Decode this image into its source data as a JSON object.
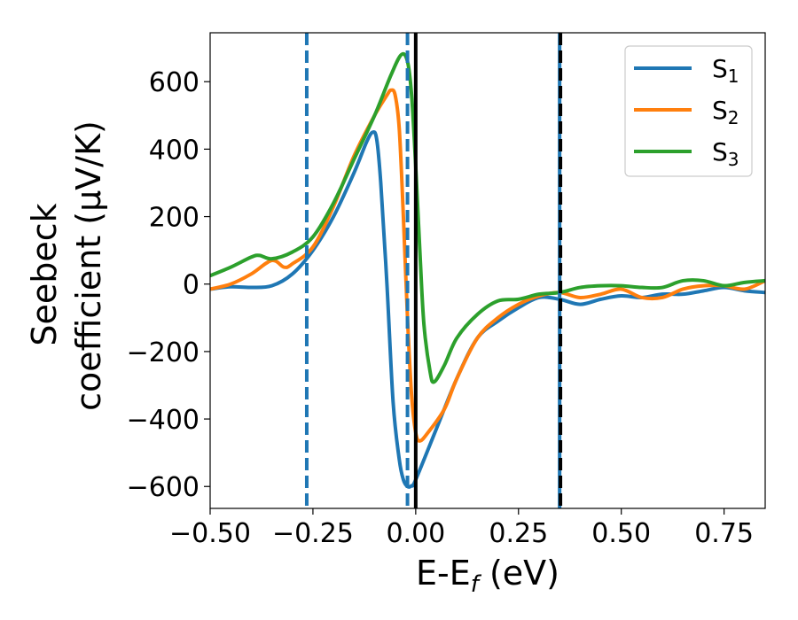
{
  "chart_data": {
    "type": "line",
    "xlabel": {
      "base": "E-E",
      "sub": "f",
      "suffix": " (eV)"
    },
    "ylabel": {
      "line1": "Seebeck",
      "line2": "coefficient  (μV/K)"
    },
    "xlim": [
      -0.5,
      0.85
    ],
    "ylim": [
      -665,
      745
    ],
    "xticks": [
      -0.5,
      -0.25,
      0.0,
      0.25,
      0.5,
      0.75
    ],
    "xtick_labels": [
      "−0.50",
      "−0.25",
      "0.00",
      "0.25",
      "0.50",
      "0.75"
    ],
    "yticks": [
      -600,
      -400,
      -200,
      0,
      200,
      400,
      600
    ],
    "ytick_labels": [
      "−600",
      "−400",
      "−200",
      "0",
      "200",
      "400",
      "600"
    ],
    "grid": false,
    "legend": {
      "position": "top-right",
      "entries": [
        {
          "base": "S",
          "sub": "1",
          "color": "#1f77b4"
        },
        {
          "base": "S",
          "sub": "2",
          "color": "#ff7f0e"
        },
        {
          "base": "S",
          "sub": "3",
          "color": "#2ca02c"
        }
      ]
    },
    "series": [
      {
        "color": "#1f77b4",
        "points": [
          [
            -0.5,
            -15
          ],
          [
            -0.45,
            -8
          ],
          [
            -0.4,
            -10
          ],
          [
            -0.35,
            -5
          ],
          [
            -0.3,
            30
          ],
          [
            -0.25,
            100
          ],
          [
            -0.2,
            200
          ],
          [
            -0.15,
            330
          ],
          [
            -0.12,
            420
          ],
          [
            -0.105,
            450
          ],
          [
            -0.095,
            430
          ],
          [
            -0.085,
            300
          ],
          [
            -0.07,
            0
          ],
          [
            -0.055,
            -350
          ],
          [
            -0.04,
            -520
          ],
          [
            -0.03,
            -580
          ],
          [
            -0.02,
            -600
          ],
          [
            -0.01,
            -598
          ],
          [
            0.0,
            -580
          ],
          [
            0.05,
            -430
          ],
          [
            0.1,
            -280
          ],
          [
            0.15,
            -160
          ],
          [
            0.2,
            -110
          ],
          [
            0.25,
            -70
          ],
          [
            0.3,
            -40
          ],
          [
            0.35,
            -45
          ],
          [
            0.4,
            -60
          ],
          [
            0.45,
            -45
          ],
          [
            0.5,
            -35
          ],
          [
            0.55,
            -40
          ],
          [
            0.6,
            -30
          ],
          [
            0.65,
            -30
          ],
          [
            0.7,
            -20
          ],
          [
            0.75,
            -10
          ],
          [
            0.8,
            -20
          ],
          [
            0.85,
            -25
          ]
        ]
      },
      {
        "color": "#ff7f0e",
        "points": [
          [
            -0.5,
            -15
          ],
          [
            -0.45,
            0
          ],
          [
            -0.4,
            30
          ],
          [
            -0.35,
            70
          ],
          [
            -0.32,
            50
          ],
          [
            -0.3,
            60
          ],
          [
            -0.25,
            110
          ],
          [
            -0.2,
            230
          ],
          [
            -0.15,
            380
          ],
          [
            -0.1,
            500
          ],
          [
            -0.07,
            560
          ],
          [
            -0.06,
            575
          ],
          [
            -0.05,
            560
          ],
          [
            -0.04,
            460
          ],
          [
            -0.03,
            200
          ],
          [
            -0.02,
            -100
          ],
          [
            -0.01,
            -330
          ],
          [
            0.0,
            -440
          ],
          [
            0.01,
            -465
          ],
          [
            0.03,
            -440
          ],
          [
            0.07,
            -370
          ],
          [
            0.1,
            -280
          ],
          [
            0.15,
            -160
          ],
          [
            0.2,
            -100
          ],
          [
            0.25,
            -60
          ],
          [
            0.3,
            -35
          ],
          [
            0.35,
            -25
          ],
          [
            0.4,
            -40
          ],
          [
            0.45,
            -30
          ],
          [
            0.5,
            -15
          ],
          [
            0.55,
            -40
          ],
          [
            0.6,
            -40
          ],
          [
            0.65,
            -15
          ],
          [
            0.7,
            -5
          ],
          [
            0.75,
            -5
          ],
          [
            0.8,
            -15
          ],
          [
            0.85,
            10
          ]
        ]
      },
      {
        "color": "#2ca02c",
        "points": [
          [
            -0.5,
            25
          ],
          [
            -0.45,
            50
          ],
          [
            -0.4,
            80
          ],
          [
            -0.38,
            85
          ],
          [
            -0.35,
            75
          ],
          [
            -0.3,
            95
          ],
          [
            -0.25,
            140
          ],
          [
            -0.2,
            240
          ],
          [
            -0.15,
            370
          ],
          [
            -0.1,
            500
          ],
          [
            -0.06,
            620
          ],
          [
            -0.035,
            680
          ],
          [
            -0.02,
            660
          ],
          [
            -0.01,
            560
          ],
          [
            0.0,
            350
          ],
          [
            0.01,
            100
          ],
          [
            0.02,
            -120
          ],
          [
            0.035,
            -260
          ],
          [
            0.045,
            -290
          ],
          [
            0.07,
            -240
          ],
          [
            0.1,
            -160
          ],
          [
            0.15,
            -90
          ],
          [
            0.2,
            -50
          ],
          [
            0.25,
            -45
          ],
          [
            0.3,
            -30
          ],
          [
            0.35,
            -25
          ],
          [
            0.4,
            -10
          ],
          [
            0.45,
            -5
          ],
          [
            0.5,
            -5
          ],
          [
            0.55,
            -10
          ],
          [
            0.6,
            -10
          ],
          [
            0.65,
            10
          ],
          [
            0.7,
            10
          ],
          [
            0.75,
            -5
          ],
          [
            0.8,
            5
          ],
          [
            0.85,
            10
          ]
        ]
      }
    ],
    "vlines": [
      {
        "x": -0.265,
        "color": "#1f77b4",
        "style": "dashed"
      },
      {
        "x": -0.02,
        "color": "#1f77b4",
        "style": "dashed"
      },
      {
        "x": 0.0,
        "color": "#000000",
        "style": "solid"
      },
      {
        "x": 0.35,
        "color": "#1f77b4",
        "style": "solid"
      },
      {
        "x": 0.352,
        "color": "#000000",
        "style": "dashed"
      }
    ]
  }
}
